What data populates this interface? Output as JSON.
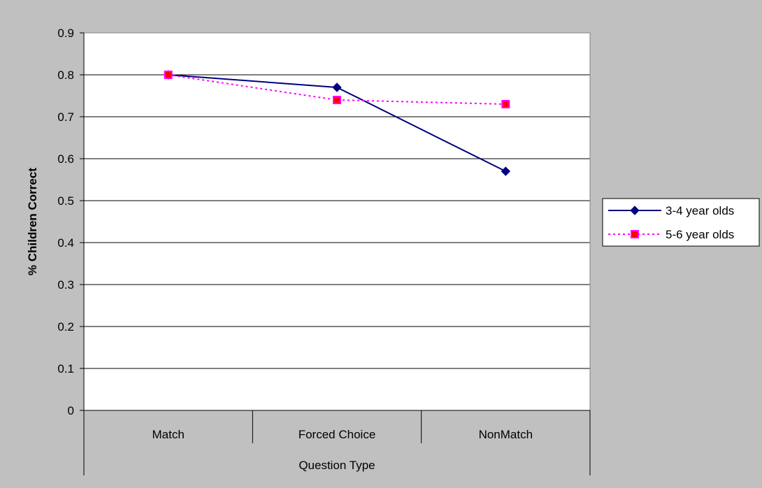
{
  "chart_data": {
    "type": "line",
    "title": "",
    "xlabel": "Question Type",
    "ylabel": "% Children Correct",
    "categories": [
      "Match",
      "Forced Choice",
      "NonMatch"
    ],
    "ylim": [
      0,
      0.9
    ],
    "yticks": [
      0,
      0.1,
      0.2,
      0.3,
      0.4,
      0.5,
      0.6,
      0.7,
      0.8,
      0.9
    ],
    "grid": true,
    "legend_position": "right",
    "series": [
      {
        "name": "3-4 year olds",
        "values": [
          0.8,
          0.77,
          0.57
        ],
        "color": "#000080",
        "line_style": "solid",
        "marker": "diamond"
      },
      {
        "name": "5-6 year olds",
        "values": [
          0.8,
          0.74,
          0.73
        ],
        "color": "#ff00ff",
        "line_style": "dotted",
        "marker": "square",
        "marker_fill": "#ff0000"
      }
    ],
    "colors": {
      "background": "#c0c0c0",
      "plot_area": "#ffffff"
    }
  }
}
